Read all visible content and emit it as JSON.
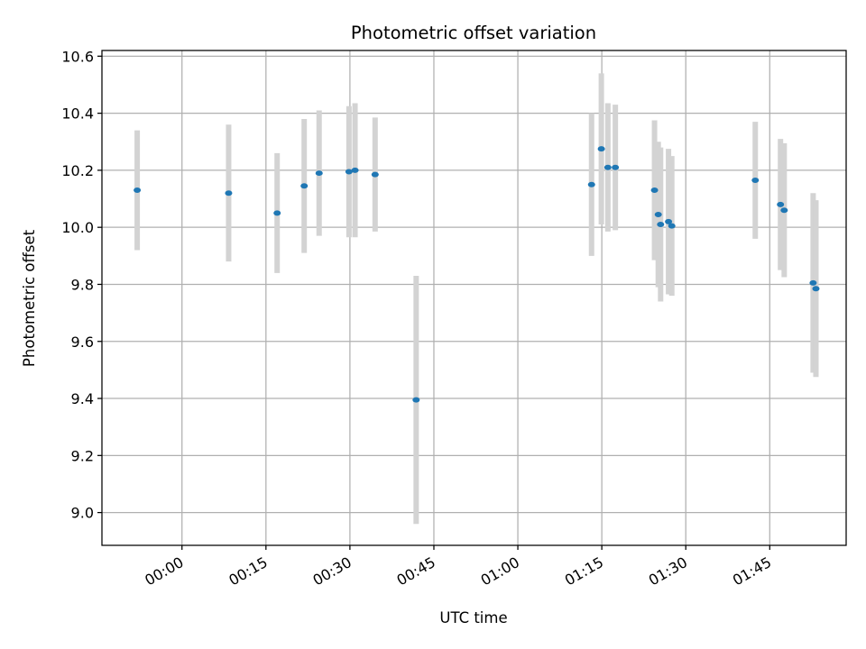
{
  "chart_data": {
    "type": "scatter",
    "title": "Photometric offset variation",
    "xlabel": "UTC time",
    "ylabel": "Photometric offset",
    "x_ticks": [
      "00:00",
      "00:15",
      "00:30",
      "00:45",
      "01:00",
      "01:15",
      "01:30",
      "01:45"
    ],
    "y_ticks": [
      "9.0",
      "9.2",
      "9.4",
      "9.6",
      "9.8",
      "10.0",
      "10.2",
      "10.4",
      "10.6"
    ],
    "xlim": [
      "23:45:42",
      "01:58:39"
    ],
    "ylim": [
      8.885,
      10.62
    ],
    "grid": true,
    "point_color": "#1f77b4",
    "errorbar_color": "#d3d3d3",
    "points": [
      {
        "x": "23:52:00",
        "y": 10.13,
        "err": 0.21
      },
      {
        "x": "00:08:20",
        "y": 10.12,
        "err": 0.24
      },
      {
        "x": "00:17:00",
        "y": 10.05,
        "err": 0.21
      },
      {
        "x": "00:21:50",
        "y": 10.145,
        "err": 0.235
      },
      {
        "x": "00:24:30",
        "y": 10.19,
        "err": 0.22
      },
      {
        "x": "00:29:50",
        "y": 10.195,
        "err": 0.23
      },
      {
        "x": "00:30:55",
        "y": 10.2,
        "err": 0.235
      },
      {
        "x": "00:34:30",
        "y": 10.185,
        "err": 0.2
      },
      {
        "x": "00:41:50",
        "y": 9.395,
        "err": 0.435
      },
      {
        "x": "01:13:10",
        "y": 10.15,
        "err": 0.25
      },
      {
        "x": "01:14:55",
        "y": 10.275,
        "err": 0.265
      },
      {
        "x": "01:16:05",
        "y": 10.21,
        "err": 0.225
      },
      {
        "x": "01:17:25",
        "y": 10.21,
        "err": 0.22
      },
      {
        "x": "01:24:25",
        "y": 10.13,
        "err": 0.245
      },
      {
        "x": "01:25:05",
        "y": 10.045,
        "err": 0.255
      },
      {
        "x": "01:25:30",
        "y": 10.01,
        "err": 0.27
      },
      {
        "x": "01:26:55",
        "y": 10.02,
        "err": 0.255
      },
      {
        "x": "01:27:30",
        "y": 10.005,
        "err": 0.245
      },
      {
        "x": "01:42:25",
        "y": 10.165,
        "err": 0.205
      },
      {
        "x": "01:46:55",
        "y": 10.08,
        "err": 0.23
      },
      {
        "x": "01:47:35",
        "y": 10.06,
        "err": 0.235
      },
      {
        "x": "01:52:45",
        "y": 9.805,
        "err": 0.315
      },
      {
        "x": "01:53:15",
        "y": 9.785,
        "err": 0.31
      }
    ]
  }
}
